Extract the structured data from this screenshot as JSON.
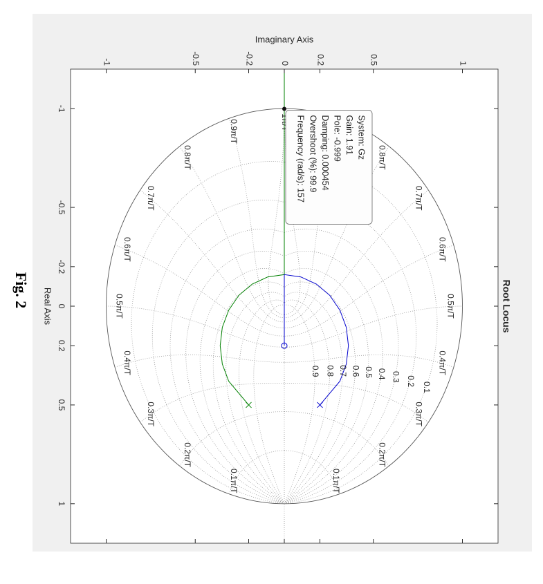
{
  "chart_data": {
    "type": "rootlocus",
    "title": "Root Locus",
    "caption": "Fig. 2",
    "xlabel": "Real Axis",
    "ylabel": "Imaginary Axis",
    "xlim": [
      -1.2,
      1.2
    ],
    "ylim": [
      -1.2,
      1.2
    ],
    "xticks": [
      -1,
      -0.5,
      -0.2,
      0,
      0.2,
      0.5,
      1
    ],
    "yticks": [
      -1,
      -0.5,
      -0.2,
      0,
      0.2,
      0.5,
      1
    ],
    "grid": true,
    "damping": [
      0.1,
      0.2,
      0.3,
      0.4,
      0.5,
      0.6,
      0.7,
      0.8,
      0.9
    ],
    "frequency": [
      {
        "value": 0.1,
        "label": "0.1π/T"
      },
      {
        "value": 0.2,
        "label": "0.2π/T"
      },
      {
        "value": 0.3,
        "label": "0.3π/T"
      },
      {
        "value": 0.4,
        "label": "0.4π/T"
      },
      {
        "value": 0.5,
        "label": "0.5π/T"
      },
      {
        "value": 0.6,
        "label": "0.6π/T"
      },
      {
        "value": 0.7,
        "label": "0.7π/T"
      },
      {
        "value": 0.8,
        "label": "0.8π/T"
      },
      {
        "value": 0.9,
        "label": "0.9π/T"
      },
      {
        "value": 1,
        "label": "1π/T"
      }
    ],
    "series": [
      {
        "color": "#008000",
        "x": [
          0.5,
          0.38,
          0.293,
          0.2,
          0.107,
          0.02,
          -0.055,
          -0.112,
          -0.148,
          -0.16,
          -1.2
        ],
        "values": [
          -0.2,
          -0.312,
          -0.348,
          -0.36,
          -0.348,
          -0.312,
          -0.255,
          -0.18,
          -0.093,
          0,
          0
        ]
      },
      {
        "color": "#0000cd",
        "x": [
          0.5,
          0.38,
          0.293,
          0.2,
          0.107,
          0.02,
          -0.055,
          -0.112,
          -0.148,
          -0.16,
          0.2
        ],
        "values": [
          0.2,
          0.312,
          0.348,
          0.36,
          0.348,
          0.312,
          0.255,
          0.18,
          0.093,
          0,
          0
        ]
      }
    ],
    "poles": [
      {
        "x": 0.5,
        "y": -0.2,
        "color": "#008000"
      },
      {
        "x": 0.5,
        "y": 0.2,
        "color": "#0000cd"
      }
    ],
    "zeros": [
      {
        "x": 0.2,
        "y": 0,
        "color": "#0000cd"
      }
    ],
    "datatip": {
      "x": -0.999,
      "y": 0,
      "lines": [
        "System: Gz",
        "Gain: 1.91",
        "Pole: -0.999",
        "Damping: 0.000454",
        "Overshoot (%): 99.9",
        "Frequency (rad/s): 157"
      ]
    }
  }
}
